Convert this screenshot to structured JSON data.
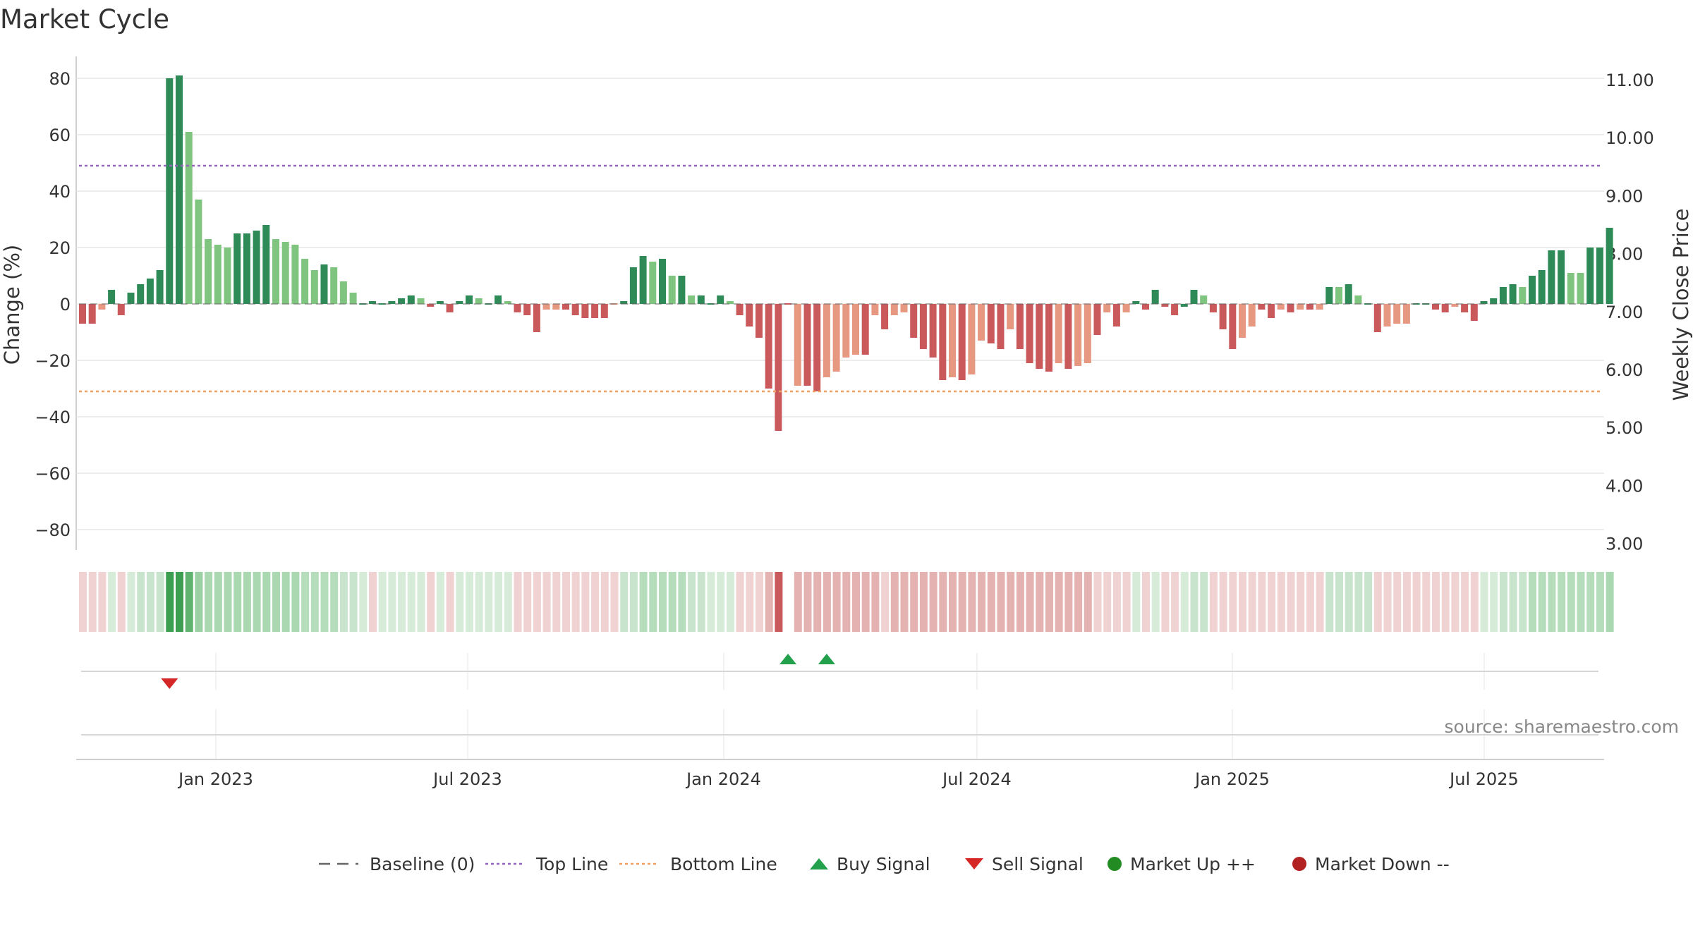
{
  "chart_data": {
    "type": "bar",
    "title": "Market Cycle",
    "ylabel_left": "Change (%)",
    "ylabel_right": "Weekly Close Price",
    "ylim_left": [
      -87,
      88
    ],
    "ylim_right": [
      2.9,
      11.3
    ],
    "left_ticks": [
      "80",
      "60",
      "40",
      "20",
      "0",
      "−20",
      "−40",
      "−60",
      "−80"
    ],
    "right_ticks": [
      "11.00",
      "10.00",
      "9.00",
      "8.00",
      "7.00",
      "6.00",
      "5.00",
      "4.00",
      "3.00"
    ],
    "x_ticks": [
      "Jan 2023",
      "Jul 2023",
      "Jan 2024",
      "Jul 2024",
      "Jan 2025",
      "Jul 2025"
    ],
    "top_line": 49,
    "bottom_line": -31,
    "baseline": 0,
    "series": [
      {
        "values": [
          -7,
          -7,
          -2,
          5,
          -4,
          4,
          7,
          9,
          12,
          80,
          81,
          61,
          37,
          23,
          21,
          20,
          25,
          25,
          26,
          28,
          23,
          22,
          21,
          16,
          12,
          14,
          13,
          8,
          4,
          0,
          1,
          0,
          1,
          2,
          3,
          2,
          -1,
          1,
          -3,
          1,
          3,
          2,
          0,
          3,
          1,
          -3,
          -4,
          -10,
          -2,
          -2,
          -2,
          -4,
          -5,
          -5,
          -5,
          0,
          1,
          13,
          17,
          15,
          16,
          10,
          10,
          3,
          3,
          0,
          3,
          1,
          -4,
          -8,
          -12,
          -30,
          -45,
          0,
          -29,
          -29,
          -31,
          -26,
          -24,
          -19,
          -18,
          -18,
          -4,
          -9,
          -4,
          -3,
          -12,
          -16,
          -19,
          -27,
          -26,
          -27,
          -25,
          -13,
          -14,
          -16,
          -9,
          -16,
          -21,
          -23,
          -24,
          -21,
          -23,
          -22,
          -21,
          -11,
          -3,
          -8,
          -3,
          1,
          -2,
          5,
          -1,
          -4,
          -1,
          5,
          3,
          -3,
          -9,
          -16,
          -12,
          -8,
          -2,
          -5,
          -2,
          -3,
          -2,
          -2,
          -2,
          6,
          6,
          7,
          3,
          0,
          -10,
          -8,
          -7,
          -7,
          0,
          0,
          -2,
          -3,
          -1,
          -3,
          -6,
          1,
          2,
          6,
          7,
          6,
          10,
          12,
          19,
          19,
          11,
          11,
          20,
          20,
          27
        ],
        "colors": [
          "#c9595b",
          "#c9595b",
          "#e79880",
          "#2e8b57",
          "#c9595b",
          "#2e8b57",
          "#2e8b57",
          "#2e8b57",
          "#2e8b57",
          "#2e8b57",
          "#2e8b57",
          "#7fc47f",
          "#7fc47f",
          "#7fc47f",
          "#7fc47f",
          "#7fc47f",
          "#2e8b57",
          "#2e8b57",
          "#2e8b57",
          "#2e8b57",
          "#7fc47f",
          "#7fc47f",
          "#7fc47f",
          "#7fc47f",
          "#7fc47f",
          "#2e8b57",
          "#7fc47f",
          "#7fc47f",
          "#7fc47f",
          "#2e8b57",
          "#2e8b57",
          "#2e8b57",
          "#2e8b57",
          "#2e8b57",
          "#2e8b57",
          "#7fc47f",
          "#c9595b",
          "#2e8b57",
          "#c9595b",
          "#2e8b57",
          "#2e8b57",
          "#7fc47f",
          "#2e8b57",
          "#2e8b57",
          "#7fc47f",
          "#c9595b",
          "#c9595b",
          "#c9595b",
          "#e79880",
          "#e79880",
          "#c9595b",
          "#c9595b",
          "#c9595b",
          "#c9595b",
          "#c9595b",
          "#e79880",
          "#2e8b57",
          "#2e8b57",
          "#2e8b57",
          "#7fc47f",
          "#2e8b57",
          "#7fc47f",
          "#2e8b57",
          "#7fc47f",
          "#2e8b57",
          "#2e8b57",
          "#2e8b57",
          "#7fc47f",
          "#c9595b",
          "#c9595b",
          "#c9595b",
          "#c9595b",
          "#c9595b",
          "#c9595b",
          "#e79880",
          "#c9595b",
          "#c9595b",
          "#e79880",
          "#e79880",
          "#e79880",
          "#e79880",
          "#c9595b",
          "#e79880",
          "#c9595b",
          "#e79880",
          "#e79880",
          "#c9595b",
          "#c9595b",
          "#c9595b",
          "#c9595b",
          "#e79880",
          "#c9595b",
          "#e79880",
          "#e79880",
          "#c9595b",
          "#c9595b",
          "#e79880",
          "#c9595b",
          "#c9595b",
          "#c9595b",
          "#c9595b",
          "#e79880",
          "#c9595b",
          "#e79880",
          "#e79880",
          "#c9595b",
          "#e79880",
          "#c9595b",
          "#e79880",
          "#2e8b57",
          "#c9595b",
          "#2e8b57",
          "#c9595b",
          "#c9595b",
          "#2e8b57",
          "#2e8b57",
          "#7fc47f",
          "#c9595b",
          "#c9595b",
          "#c9595b",
          "#e79880",
          "#e79880",
          "#c9595b",
          "#c9595b",
          "#e79880",
          "#c9595b",
          "#e79880",
          "#c9595b",
          "#e79880",
          "#2e8b57",
          "#7fc47f",
          "#2e8b57",
          "#7fc47f",
          "#2e8b57",
          "#c9595b",
          "#e79880",
          "#e79880",
          "#e79880",
          "#2e8b57",
          "#2e8b57",
          "#c9595b",
          "#c9595b",
          "#e79880",
          "#c9595b",
          "#c9595b",
          "#2e8b57",
          "#2e8b57",
          "#2e8b57",
          "#2e8b57",
          "#7fc47f",
          "#2e8b57",
          "#2e8b57",
          "#2e8b57",
          "#2e8b57",
          "#7fc47f",
          "#7fc47f",
          "#2e8b57",
          "#2e8b57",
          "#2e8b57"
        ]
      }
    ],
    "signal_strip_colors": [
      "#efd2d1",
      "#efd2d1",
      "#efd2d1",
      "#d7ebd9",
      "#efd2d1",
      "#d7ebd9",
      "#c8e4cc",
      "#c8e4cc",
      "#c8e4cc",
      "#3b9e50",
      "#3b9e50",
      "#5fb36e",
      "#9ad0a3",
      "#a9d8b1",
      "#a9d8b1",
      "#a9d8b1",
      "#a9d8b1",
      "#a9d8b1",
      "#a9d8b1",
      "#a9d8b1",
      "#a9d8b1",
      "#a9d8b1",
      "#a9d8b1",
      "#b5ddbc",
      "#b5ddbc",
      "#b5ddbc",
      "#b5ddbc",
      "#c8e4cc",
      "#c8e4cc",
      "#d7ebd9",
      "#efd2d1",
      "#d7ebd9",
      "#d7ebd9",
      "#d7ebd9",
      "#d7ebd9",
      "#d7ebd9",
      "#efd2d1",
      "#d7ebd9",
      "#efd2d1",
      "#d7ebd9",
      "#d7ebd9",
      "#d7ebd9",
      "#d7ebd9",
      "#d7ebd9",
      "#d7ebd9",
      "#efd2d1",
      "#efd2d1",
      "#efd2d1",
      "#efd2d1",
      "#efd2d1",
      "#efd2d1",
      "#efd2d1",
      "#efd2d1",
      "#efd2d1",
      "#efd2d1",
      "#efd2d1",
      "#c8e4cc",
      "#c8e4cc",
      "#b5ddbc",
      "#b5ddbc",
      "#b5ddbc",
      "#b5ddbc",
      "#b5ddbc",
      "#c8e4cc",
      "#c8e4cc",
      "#d7ebd9",
      "#d7ebd9",
      "#d7ebd9",
      "#efd2d1",
      "#efd2d1",
      "#efd2d1",
      "#e4b3b1",
      "#c9595b",
      "#ffffff",
      "#e4b3b1",
      "#e4b3b1",
      "#e4b3b1",
      "#e4b3b1",
      "#e4b3b1",
      "#e4b3b1",
      "#e4b3b1",
      "#e4b3b1",
      "#e4b3b1",
      "#efd2d1",
      "#e4b3b1",
      "#e4b3b1",
      "#e4b3b1",
      "#e4b3b1",
      "#e4b3b1",
      "#e4b3b1",
      "#e4b3b1",
      "#e4b3b1",
      "#e4b3b1",
      "#e4b3b1",
      "#e4b3b1",
      "#e4b3b1",
      "#e4b3b1",
      "#e4b3b1",
      "#e4b3b1",
      "#e4b3b1",
      "#e4b3b1",
      "#e4b3b1",
      "#e4b3b1",
      "#e4b3b1",
      "#e4b3b1",
      "#efd2d1",
      "#efd2d1",
      "#efd2d1",
      "#efd2d1",
      "#d7ebd9",
      "#efd2d1",
      "#d7ebd9",
      "#efd2d1",
      "#efd2d1",
      "#d7ebd9",
      "#c8e4cc",
      "#c8e4cc",
      "#efd2d1",
      "#efd2d1",
      "#efd2d1",
      "#efd2d1",
      "#efd2d1",
      "#efd2d1",
      "#efd2d1",
      "#efd2d1",
      "#efd2d1",
      "#efd2d1",
      "#efd2d1",
      "#efd2d1",
      "#c8e4cc",
      "#c8e4cc",
      "#c8e4cc",
      "#c8e4cc",
      "#c8e4cc",
      "#efd2d1",
      "#efd2d1",
      "#efd2d1",
      "#efd2d1",
      "#efd2d1",
      "#efd2d1",
      "#efd2d1",
      "#efd2d1",
      "#efd2d1",
      "#efd2d1",
      "#efd2d1",
      "#d7ebd9",
      "#d7ebd9",
      "#c8e4cc",
      "#c8e4cc",
      "#c8e4cc",
      "#b5ddbc",
      "#b5ddbc",
      "#b5ddbc",
      "#b5ddbc",
      "#b5ddbc",
      "#b5ddbc",
      "#b5ddbc",
      "#b5ddbc",
      "#a9d8b1"
    ],
    "buy_signal_weeks": [
      73,
      77
    ],
    "sell_signal_weeks": [
      9
    ],
    "source": "source: sharemaestro.com",
    "legend": [
      {
        "label": "Baseline (0)",
        "kind": "dash",
        "color": "#666666"
      },
      {
        "label": "Top Line",
        "kind": "dot",
        "color": "#9467bd"
      },
      {
        "label": "Bottom Line",
        "kind": "dot",
        "color": "#f0a060"
      },
      {
        "label": "Buy Signal",
        "kind": "up",
        "color": "#22a04b"
      },
      {
        "label": "Sell Signal",
        "kind": "down",
        "color": "#d62728"
      },
      {
        "label": "Market Up ++",
        "kind": "circle",
        "color": "#228b22"
      },
      {
        "label": "Market Down --",
        "kind": "circle",
        "color": "#b22222"
      }
    ],
    "colors": {
      "strong_up": "#2e8b57",
      "weak_up": "#7fc47f",
      "strong_down": "#c9595b",
      "weak_down": "#e79880",
      "top_line": "#9467bd",
      "bottom_line": "#f0a060"
    }
  }
}
